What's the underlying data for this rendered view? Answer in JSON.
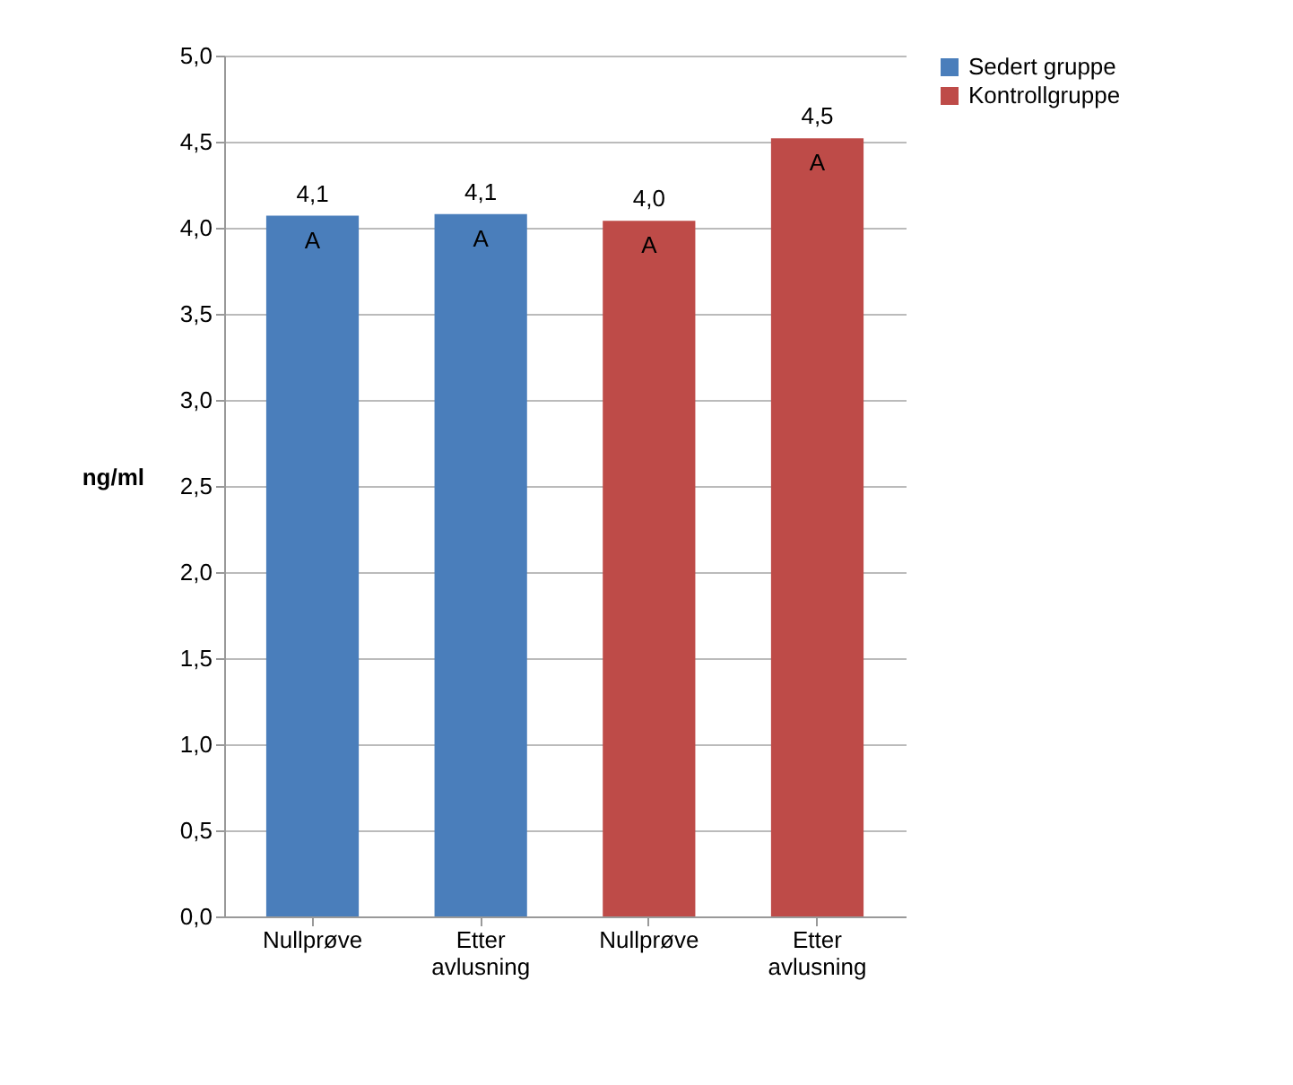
{
  "chart_data": {
    "type": "bar",
    "categories": [
      "Nullprøve",
      "Etter avlusning",
      "Nullprøve",
      "Etter avlusning"
    ],
    "series": [
      {
        "name": "Sedert gruppe",
        "color": "#4a7ebb",
        "values": [
          4.07,
          4.08,
          null,
          null
        ],
        "value_labels": [
          "4,1",
          "4,1",
          null,
          null
        ]
      },
      {
        "name": "Kontrollgruppe",
        "color": "#be4b48",
        "values": [
          null,
          null,
          4.04,
          4.52
        ],
        "value_labels": [
          null,
          null,
          "4,0",
          "4,5"
        ]
      }
    ],
    "ylabel": "ng/ml",
    "ylim": [
      0,
      5
    ],
    "yticks": [
      {
        "value": 0,
        "label": "0,0"
      },
      {
        "value": 0.5,
        "label": "0,5"
      },
      {
        "value": 1,
        "label": "1,0"
      },
      {
        "value": 1.5,
        "label": "1,5"
      },
      {
        "value": 2,
        "label": "2,0"
      },
      {
        "value": 2.5,
        "label": "2,5"
      },
      {
        "value": 3,
        "label": "3,0"
      },
      {
        "value": 3.5,
        "label": "3,5"
      },
      {
        "value": 4,
        "label": "4,0"
      },
      {
        "value": 4.5,
        "label": "4,5"
      },
      {
        "value": 5,
        "label": "5,0"
      }
    ],
    "annotations": [
      "A",
      "A",
      "A",
      "A"
    ],
    "grid": "y",
    "legend": "right"
  }
}
